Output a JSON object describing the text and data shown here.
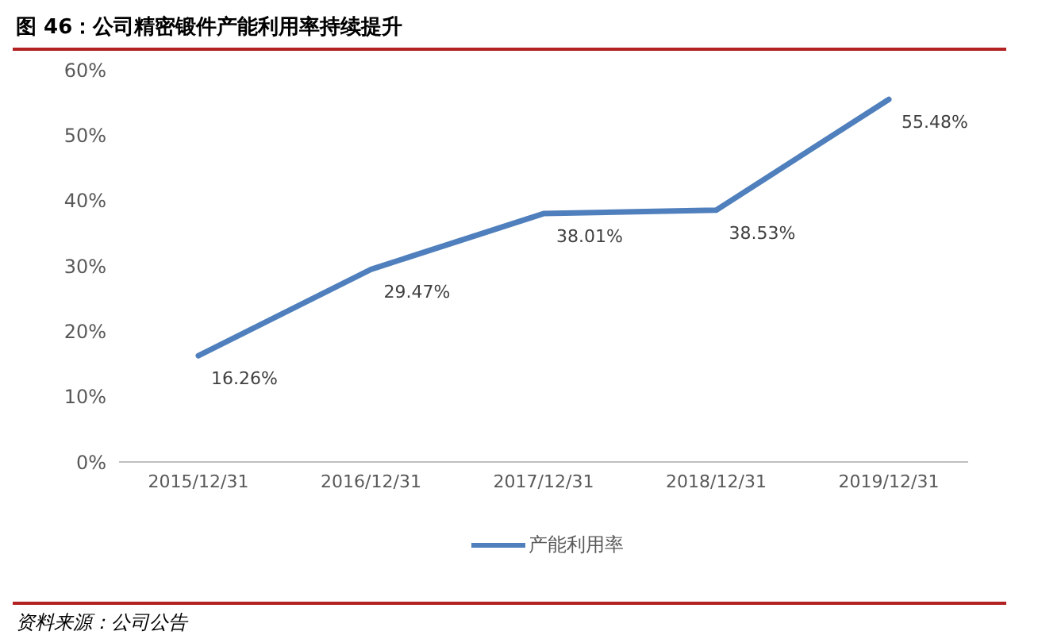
{
  "chart_data": {
    "type": "line",
    "title": "图 46：公司精密锻件产能利用率持续提升",
    "categories": [
      "2015/12/31",
      "2016/12/31",
      "2017/12/31",
      "2018/12/31",
      "2019/12/31"
    ],
    "series": [
      {
        "name": "产能利用率",
        "color": "#4f7fbc",
        "values": [
          16.26,
          29.47,
          38.01,
          38.53,
          55.48
        ],
        "value_labels": [
          "16.26%",
          "29.47%",
          "38.01%",
          "38.53%",
          "55.48%"
        ]
      }
    ],
    "ylim": [
      0,
      60
    ],
    "yticks": [
      {
        "value": 0,
        "label": "0%"
      },
      {
        "value": 10,
        "label": "10%"
      },
      {
        "value": 20,
        "label": "20%"
      },
      {
        "value": 30,
        "label": "30%"
      },
      {
        "value": 40,
        "label": "40%"
      },
      {
        "value": 50,
        "label": "50%"
      },
      {
        "value": 60,
        "label": "60%"
      }
    ],
    "grid": false,
    "legend": "bottom",
    "marker": "none",
    "line_style": "solid",
    "annotations": [
      "资料来源：公司公告"
    ]
  }
}
